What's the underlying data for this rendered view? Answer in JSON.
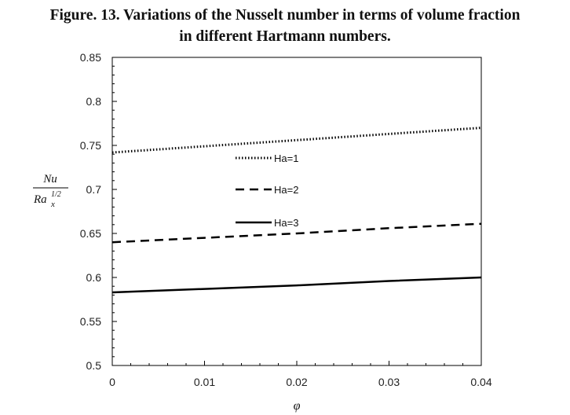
{
  "figure": {
    "caption_line1": "Figure. 13. Variations of the Nusselt number in terms of volume fraction",
    "caption_line2": "in different Hartmann numbers."
  },
  "chart_data": {
    "type": "line",
    "xlabel": "φ",
    "ylabel": {
      "numerator": "Nu",
      "base": "Ra",
      "subscript": "x",
      "superscript": "1/2"
    },
    "xlim": [
      0,
      0.04
    ],
    "ylim": [
      0.5,
      0.85
    ],
    "xticks": [
      0,
      0.01,
      0.02,
      0.03,
      0.04
    ],
    "xtick_labels": [
      "0",
      "0.01",
      "0.02",
      "0.03",
      "0.04"
    ],
    "yticks": [
      0.5,
      0.55,
      0.6,
      0.65,
      0.7,
      0.75,
      0.8,
      0.85
    ],
    "ytick_labels": [
      "0.5",
      "0.55",
      "0.6",
      "0.65",
      "0.7",
      "0.75",
      "0.8",
      "0.85"
    ],
    "grid": false,
    "legend_position": "center-left inside plot",
    "x": [
      0,
      0.01,
      0.02,
      0.03,
      0.04
    ],
    "series": [
      {
        "name": "Ha=1",
        "style": "dotted",
        "values": [
          0.742,
          0.749,
          0.756,
          0.763,
          0.77
        ]
      },
      {
        "name": "Ha=2",
        "style": "dashed",
        "values": [
          0.64,
          0.645,
          0.65,
          0.656,
          0.661
        ]
      },
      {
        "name": "Ha=3",
        "style": "solid",
        "values": [
          0.583,
          0.587,
          0.591,
          0.596,
          0.6
        ]
      }
    ],
    "line_color": "#000000"
  }
}
